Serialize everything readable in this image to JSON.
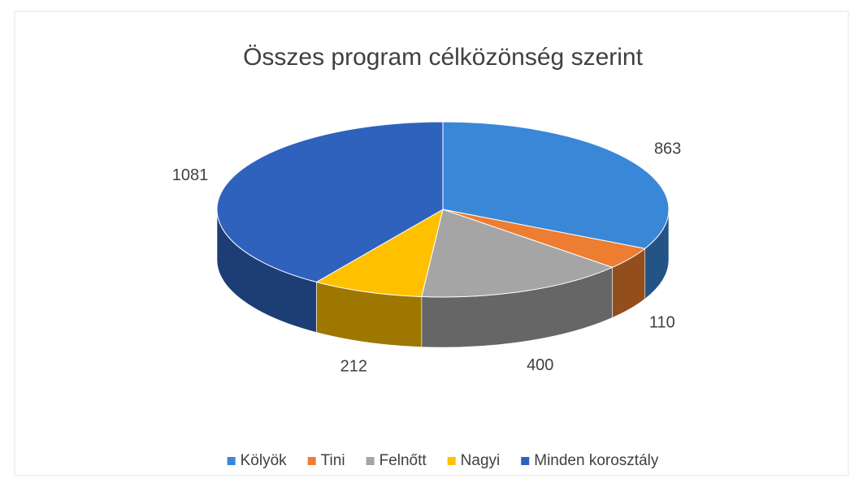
{
  "chart_data": {
    "type": "pie3d",
    "title": "Összes program célközönség szerint",
    "categories": [
      "Kölyök",
      "Tini",
      "Felnőtt",
      "Nagyi",
      "Minden korosztály"
    ],
    "values": [
      863,
      110,
      400,
      212,
      1081
    ],
    "colors": [
      "#3a87d8",
      "#ed7d31",
      "#a5a5a5",
      "#ffc000",
      "#2f62bd"
    ],
    "legend": "bottom"
  }
}
